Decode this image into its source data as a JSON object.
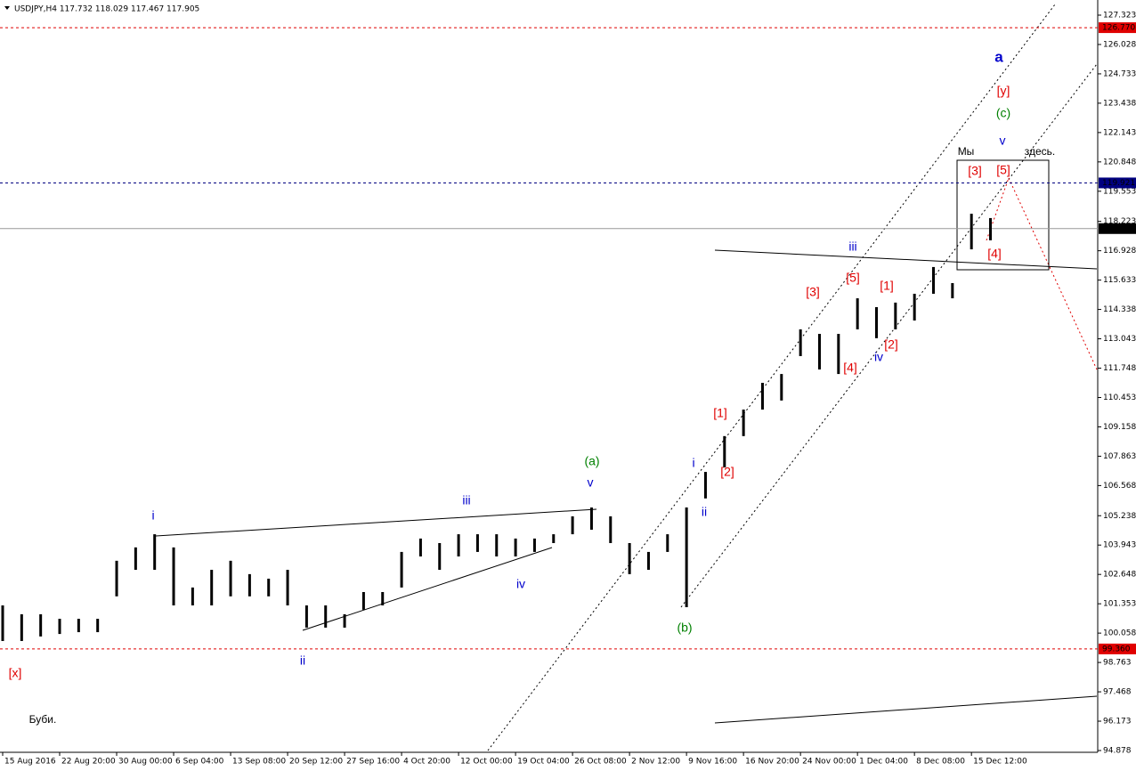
{
  "chart_data": {
    "type": "ohlc",
    "title": "USDJPY,H4  117.732 118.029 117.467 117.905",
    "high": [
      101.28,
      100.89,
      100.89,
      100.69,
      100.69,
      100.69,
      103.25,
      103.84,
      104.42,
      103.84,
      102.07,
      102.85,
      103.25,
      102.66,
      102.46,
      102.85,
      101.28,
      101.28,
      100.89,
      101.87,
      101.87,
      103.64,
      104.23,
      104.03,
      104.42,
      104.42,
      104.42,
      104.23,
      104.23,
      104.42,
      105.21,
      105.6,
      105.21,
      104.03,
      103.64,
      104.42,
      105.6,
      107.17,
      108.75,
      109.92,
      111.1,
      111.49,
      113.46,
      113.26,
      113.26,
      114.83,
      114.44,
      114.64,
      115.03,
      116.21,
      115.5,
      118.56,
      118.37
    ],
    "low": [
      99.71,
      99.71,
      99.91,
      100.02,
      100.1,
      100.1,
      101.68,
      102.85,
      102.85,
      101.28,
      101.28,
      101.28,
      101.68,
      101.68,
      101.68,
      101.28,
      100.3,
      100.3,
      100.3,
      101.09,
      101.28,
      102.07,
      103.44,
      102.85,
      103.44,
      103.64,
      103.44,
      103.44,
      103.64,
      104.03,
      104.42,
      104.62,
      104.03,
      102.66,
      102.85,
      103.64,
      101.2,
      106.0,
      107.37,
      108.75,
      109.92,
      110.32,
      112.28,
      111.69,
      111.49,
      113.46,
      113.07,
      113.46,
      113.85,
      115.03,
      114.83,
      116.99,
      117.39
    ],
    "xlim": [
      0,
      57.6
    ],
    "xticks": [
      {
        "value": 0,
        "label": "15 Aug 2016"
      },
      {
        "value": 3,
        "label": "22 Aug 20:00"
      },
      {
        "value": 6,
        "label": "30 Aug 00:00"
      },
      {
        "value": 9,
        "label": "6 Sep 04:00"
      },
      {
        "value": 12,
        "label": "13 Sep 08:00"
      },
      {
        "value": 15,
        "label": "20 Sep 12:00"
      },
      {
        "value": 18,
        "label": "27 Sep 16:00"
      },
      {
        "value": 21,
        "label": "4 Oct 20:00"
      },
      {
        "value": 24,
        "label": "12 Oct 00:00"
      },
      {
        "value": 27,
        "label": "19 Oct 04:00"
      },
      {
        "value": 30,
        "label": "26 Oct 08:00"
      },
      {
        "value": 33,
        "label": "2 Nov 12:00"
      },
      {
        "value": 36,
        "label": "9 Nov 16:00"
      },
      {
        "value": 39,
        "label": "16 Nov 20:00"
      },
      {
        "value": 42,
        "label": "24 Nov 00:00"
      },
      {
        "value": 45,
        "label": "1 Dec 04:00"
      },
      {
        "value": 48,
        "label": "8 Dec 08:00"
      },
      {
        "value": 51,
        "label": "15 Dec 12:00"
      }
    ],
    "ylim": [
      94.878,
      127.323
    ],
    "yticks": [
      127.323,
      126.028,
      124.733,
      123.438,
      122.143,
      120.848,
      119.553,
      118.223,
      116.928,
      115.633,
      114.338,
      113.043,
      111.748,
      110.453,
      109.158,
      107.863,
      106.568,
      105.238,
      103.943,
      102.648,
      101.353,
      100.058,
      98.763,
      97.468,
      96.173,
      94.878
    ],
    "levels": [
      {
        "value": 126.77,
        "label": "126.770",
        "color": "#e00000",
        "style": "dashed"
      },
      {
        "value": 119.921,
        "label": "119.921",
        "color": "#000080",
        "style": "dashed"
      },
      {
        "value": 117.905,
        "label": "117.905",
        "color": "#000000",
        "style": "solid"
      },
      {
        "value": 99.36,
        "label": "99.360",
        "color": "#e00000",
        "style": "dashed"
      }
    ],
    "annotations": [
      {
        "text": "[x]",
        "color": "#e00000"
      },
      {
        "text": "i",
        "color": "#0000cc"
      },
      {
        "text": "ii",
        "color": "#0000cc"
      },
      {
        "text": "iii",
        "color": "#0000cc"
      },
      {
        "text": "iv",
        "color": "#0000cc"
      },
      {
        "text": "v",
        "color": "#0000cc"
      },
      {
        "text": "(a)",
        "color": "#008000"
      },
      {
        "text": "(b)",
        "color": "#008000"
      },
      {
        "text": "i",
        "color": "#0000cc"
      },
      {
        "text": "ii",
        "color": "#0000cc"
      },
      {
        "text": "[1]",
        "color": "#e00000"
      },
      {
        "text": "[2]",
        "color": "#e00000"
      },
      {
        "text": "[3]",
        "color": "#e00000"
      },
      {
        "text": "[4]",
        "color": "#e00000"
      },
      {
        "text": "[5]",
        "color": "#e00000"
      },
      {
        "text": "iii",
        "color": "#0000cc"
      },
      {
        "text": "[1]",
        "color": "#e00000"
      },
      {
        "text": "[2]",
        "color": "#e00000"
      },
      {
        "text": "iv",
        "color": "#0000cc"
      },
      {
        "text": "[3]",
        "color": "#e00000"
      },
      {
        "text": "[4]",
        "color": "#e00000"
      },
      {
        "text": "[5]",
        "color": "#e00000"
      },
      {
        "text": "v",
        "color": "#0000cc"
      },
      {
        "text": "(c)",
        "color": "#008000"
      },
      {
        "text": "[y]",
        "color": "#e00000"
      },
      {
        "text": "a",
        "color": "#0000cc"
      },
      {
        "text": "Мы",
        "color": "#000000"
      },
      {
        "text": "здесь.",
        "color": "#000000"
      },
      {
        "text": "Буби.",
        "color": "#000000"
      }
    ]
  }
}
